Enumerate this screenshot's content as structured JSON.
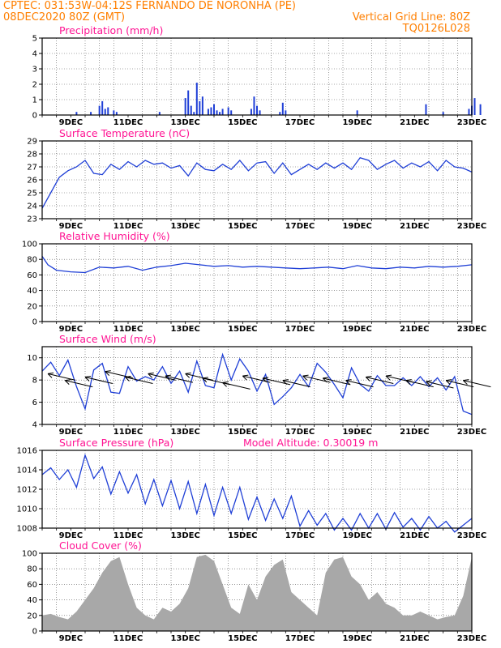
{
  "header": {
    "line1": "CPTEC:  031:53W-04:12S  FERNANDO DE NORONHA (PE)",
    "line2_left": "08DEC2020 80Z (GMT)",
    "line2_right": "Vertical Grid Line: 80Z",
    "line3_right": "TQ0126L028"
  },
  "colors": {
    "header": "#ff7f00",
    "title": "#ff1493",
    "line": "#1f3fd6",
    "bar": "#1f3fd6",
    "cloud": "#a8a8a8"
  },
  "x_axis": {
    "day_ticks": [
      "9DEC",
      "11DEC",
      "13DEC",
      "15DEC",
      "17DEC",
      "19DEC",
      "21DEC",
      "23DEC"
    ]
  },
  "chart_data": [
    {
      "type": "bar",
      "title": "Precipitation (mm/h)",
      "ylim": [
        0,
        5
      ],
      "yticks": [
        "0",
        "1",
        "2",
        "3",
        "4",
        "5"
      ],
      "x": [
        1.2,
        1.7,
        2.0,
        2.1,
        2.2,
        2.3,
        2.5,
        2.6,
        4.1,
        5.0,
        5.1,
        5.2,
        5.3,
        5.4,
        5.5,
        5.6,
        5.8,
        5.9,
        6.0,
        6.1,
        6.2,
        6.3,
        6.5,
        6.6,
        7.3,
        7.4,
        7.5,
        7.6,
        8.3,
        8.4,
        8.5,
        11.0,
        13.4,
        14.0,
        14.9,
        15.0,
        15.1,
        15.3
      ],
      "values": [
        0.2,
        0.2,
        0.6,
        0.9,
        0.4,
        0.5,
        0.3,
        0.2,
        0.2,
        1.1,
        1.6,
        0.6,
        0.2,
        2.1,
        0.9,
        1.2,
        0.4,
        0.5,
        0.7,
        0.3,
        0.2,
        0.4,
        0.5,
        0.3,
        0.4,
        1.2,
        0.6,
        0.3,
        0.2,
        0.8,
        0.3,
        0.3,
        0.7,
        0.2,
        0.4,
        0.6,
        1.1,
        0.7
      ],
      "grid": true
    },
    {
      "type": "line",
      "title": "Surface Temperature (nC)",
      "ylim": [
        23,
        29
      ],
      "yticks": [
        "23",
        "24",
        "25",
        "26",
        "27",
        "28",
        "29"
      ],
      "x": [
        0,
        0.3,
        0.6,
        0.9,
        1.2,
        1.5,
        1.8,
        2.1,
        2.4,
        2.7,
        3.0,
        3.3,
        3.6,
        3.9,
        4.2,
        4.5,
        4.8,
        5.1,
        5.4,
        5.7,
        6.0,
        6.3,
        6.6,
        6.9,
        7.2,
        7.5,
        7.8,
        8.1,
        8.4,
        8.7,
        9.0,
        9.3,
        9.6,
        9.9,
        10.2,
        10.5,
        10.8,
        11.1,
        11.4,
        11.7,
        12.0,
        12.3,
        12.6,
        12.9,
        13.2,
        13.5,
        13.8,
        14.1,
        14.4,
        14.7,
        15.0
      ],
      "values": [
        23.8,
        25.0,
        26.2,
        26.7,
        27.0,
        27.5,
        26.5,
        26.4,
        27.2,
        26.8,
        27.4,
        27.0,
        27.5,
        27.2,
        27.3,
        26.9,
        27.1,
        26.3,
        27.3,
        26.8,
        26.7,
        27.2,
        26.8,
        27.5,
        26.7,
        27.3,
        27.4,
        26.5,
        27.3,
        26.4,
        26.8,
        27.2,
        26.8,
        27.3,
        26.9,
        27.3,
        26.8,
        27.7,
        27.5,
        26.8,
        27.2,
        27.5,
        26.9,
        27.3,
        27.0,
        27.4,
        26.7,
        27.5,
        27.0,
        26.9,
        26.6
      ],
      "grid": true
    },
    {
      "type": "line",
      "title": "Relative Humidity (%)",
      "ylim": [
        0,
        100
      ],
      "yticks": [
        "0",
        "20",
        "40",
        "60",
        "80",
        "100"
      ],
      "x": [
        0,
        0.2,
        0.5,
        1.0,
        1.5,
        2.0,
        2.5,
        3.0,
        3.5,
        4.0,
        4.5,
        5.0,
        5.5,
        6.0,
        6.5,
        7.0,
        7.5,
        8.0,
        8.5,
        9.0,
        9.5,
        10.0,
        10.5,
        11.0,
        11.5,
        12.0,
        12.5,
        13.0,
        13.5,
        14.0,
        14.5,
        15.0
      ],
      "values": [
        84,
        73,
        66,
        64,
        63,
        70,
        69,
        71,
        66,
        70,
        72,
        75,
        73,
        71,
        72,
        70,
        71,
        70,
        69,
        68,
        69,
        70,
        68,
        72,
        69,
        68,
        70,
        69,
        71,
        70,
        71,
        73
      ],
      "grid": true
    },
    {
      "type": "line",
      "title": "Surface Wind (m/s)",
      "ylim": [
        4,
        11
      ],
      "yticks": [
        "4",
        "6",
        "8",
        "10"
      ],
      "x": [
        0,
        0.3,
        0.6,
        0.9,
        1.2,
        1.5,
        1.8,
        2.1,
        2.4,
        2.7,
        3.0,
        3.3,
        3.6,
        3.9,
        4.2,
        4.5,
        4.8,
        5.1,
        5.4,
        5.7,
        6.0,
        6.3,
        6.6,
        6.9,
        7.2,
        7.5,
        7.8,
        8.1,
        8.4,
        8.7,
        9.0,
        9.3,
        9.6,
        9.9,
        10.2,
        10.5,
        10.8,
        11.1,
        11.4,
        11.7,
        12.0,
        12.3,
        12.6,
        12.9,
        13.2,
        13.5,
        13.8,
        14.1,
        14.4,
        14.7,
        15.0
      ],
      "values": [
        8.8,
        9.6,
        8.4,
        9.8,
        7.4,
        5.4,
        8.9,
        9.5,
        6.9,
        6.8,
        9.2,
        7.9,
        8.3,
        8.0,
        9.2,
        7.7,
        8.8,
        6.9,
        9.7,
        7.5,
        7.3,
        10.3,
        8.0,
        9.9,
        8.8,
        7.0,
        8.5,
        5.8,
        6.5,
        7.3,
        8.5,
        7.4,
        9.5,
        8.7,
        7.6,
        6.4,
        9.1,
        7.6,
        7.0,
        8.4,
        7.5,
        7.5,
        8.2,
        7.5,
        8.3,
        7.4,
        8.2,
        7.1,
        8.3,
        5.2,
        4.9
      ],
      "arrows_x": [
        0.2,
        0.8,
        1.5,
        2.2,
        2.9,
        3.7,
        4.3,
        5.0,
        5.6,
        6.3,
        7.0,
        7.7,
        8.4,
        9.1,
        9.8,
        10.6,
        11.3,
        12.0,
        12.7,
        13.4,
        14.1,
        14.7
      ],
      "arrows_y": [
        8.2,
        7.6,
        7.9,
        8.4,
        7.9,
        8.2,
        8.0,
        8.2,
        7.8,
        7.4,
        8.0,
        7.8,
        7.6,
        8.0,
        7.8,
        7.6,
        7.9,
        8.0,
        7.6,
        7.5,
        7.6,
        7.6
      ],
      "grid": true
    },
    {
      "type": "line",
      "title": "Surface Pressure (hPa)",
      "annotation": "Model Altitude: 0.30019 m",
      "ylim": [
        1008,
        1016
      ],
      "yticks": [
        "1008",
        "1010",
        "1012",
        "1014",
        "1016"
      ],
      "x": [
        0,
        0.3,
        0.6,
        0.9,
        1.2,
        1.5,
        1.8,
        2.1,
        2.4,
        2.7,
        3.0,
        3.3,
        3.6,
        3.9,
        4.2,
        4.5,
        4.8,
        5.1,
        5.4,
        5.7,
        6.0,
        6.3,
        6.6,
        6.9,
        7.2,
        7.5,
        7.8,
        8.1,
        8.4,
        8.7,
        9.0,
        9.3,
        9.6,
        9.9,
        10.2,
        10.5,
        10.8,
        11.1,
        11.4,
        11.7,
        12.0,
        12.3,
        12.6,
        12.9,
        13.2,
        13.5,
        13.8,
        14.1,
        14.4,
        14.7,
        15.0
      ],
      "values": [
        1013.5,
        1014.2,
        1013.0,
        1014.0,
        1012.2,
        1015.5,
        1013.1,
        1014.3,
        1011.5,
        1013.8,
        1011.6,
        1013.5,
        1010.5,
        1013.0,
        1010.3,
        1012.9,
        1010.0,
        1012.8,
        1009.5,
        1012.5,
        1009.3,
        1012.2,
        1009.5,
        1012.2,
        1008.9,
        1011.2,
        1008.8,
        1011.0,
        1009.0,
        1011.3,
        1008.2,
        1009.8,
        1008.3,
        1009.5,
        1007.8,
        1009.0,
        1007.8,
        1009.5,
        1008.0,
        1009.5,
        1007.9,
        1009.6,
        1008.1,
        1009.0,
        1007.8,
        1009.2,
        1008.0,
        1008.7,
        1007.6,
        1008.3,
        1009.0
      ],
      "grid": true
    },
    {
      "type": "area",
      "title": "Cloud Cover (%)",
      "ylim": [
        0,
        100
      ],
      "yticks": [
        "0",
        "20",
        "40",
        "60",
        "80",
        "100"
      ],
      "x": [
        0,
        0.3,
        0.6,
        0.9,
        1.2,
        1.5,
        1.8,
        2.1,
        2.4,
        2.7,
        3.0,
        3.3,
        3.6,
        3.9,
        4.2,
        4.5,
        4.8,
        5.1,
        5.4,
        5.7,
        6.0,
        6.3,
        6.6,
        6.9,
        7.2,
        7.5,
        7.8,
        8.1,
        8.4,
        8.7,
        9.0,
        9.3,
        9.6,
        9.9,
        10.2,
        10.5,
        10.8,
        11.1,
        11.4,
        11.7,
        12.0,
        12.3,
        12.6,
        12.9,
        13.2,
        13.5,
        13.8,
        14.1,
        14.4,
        14.7,
        15.0
      ],
      "values": [
        20,
        22,
        18,
        15,
        25,
        40,
        55,
        75,
        90,
        95,
        60,
        30,
        20,
        15,
        30,
        25,
        35,
        55,
        95,
        98,
        90,
        60,
        30,
        22,
        60,
        40,
        70,
        85,
        92,
        50,
        40,
        30,
        20,
        75,
        92,
        95,
        70,
        60,
        40,
        50,
        35,
        30,
        20,
        20,
        25,
        20,
        15,
        18,
        20,
        45,
        95
      ],
      "grid": true
    }
  ]
}
